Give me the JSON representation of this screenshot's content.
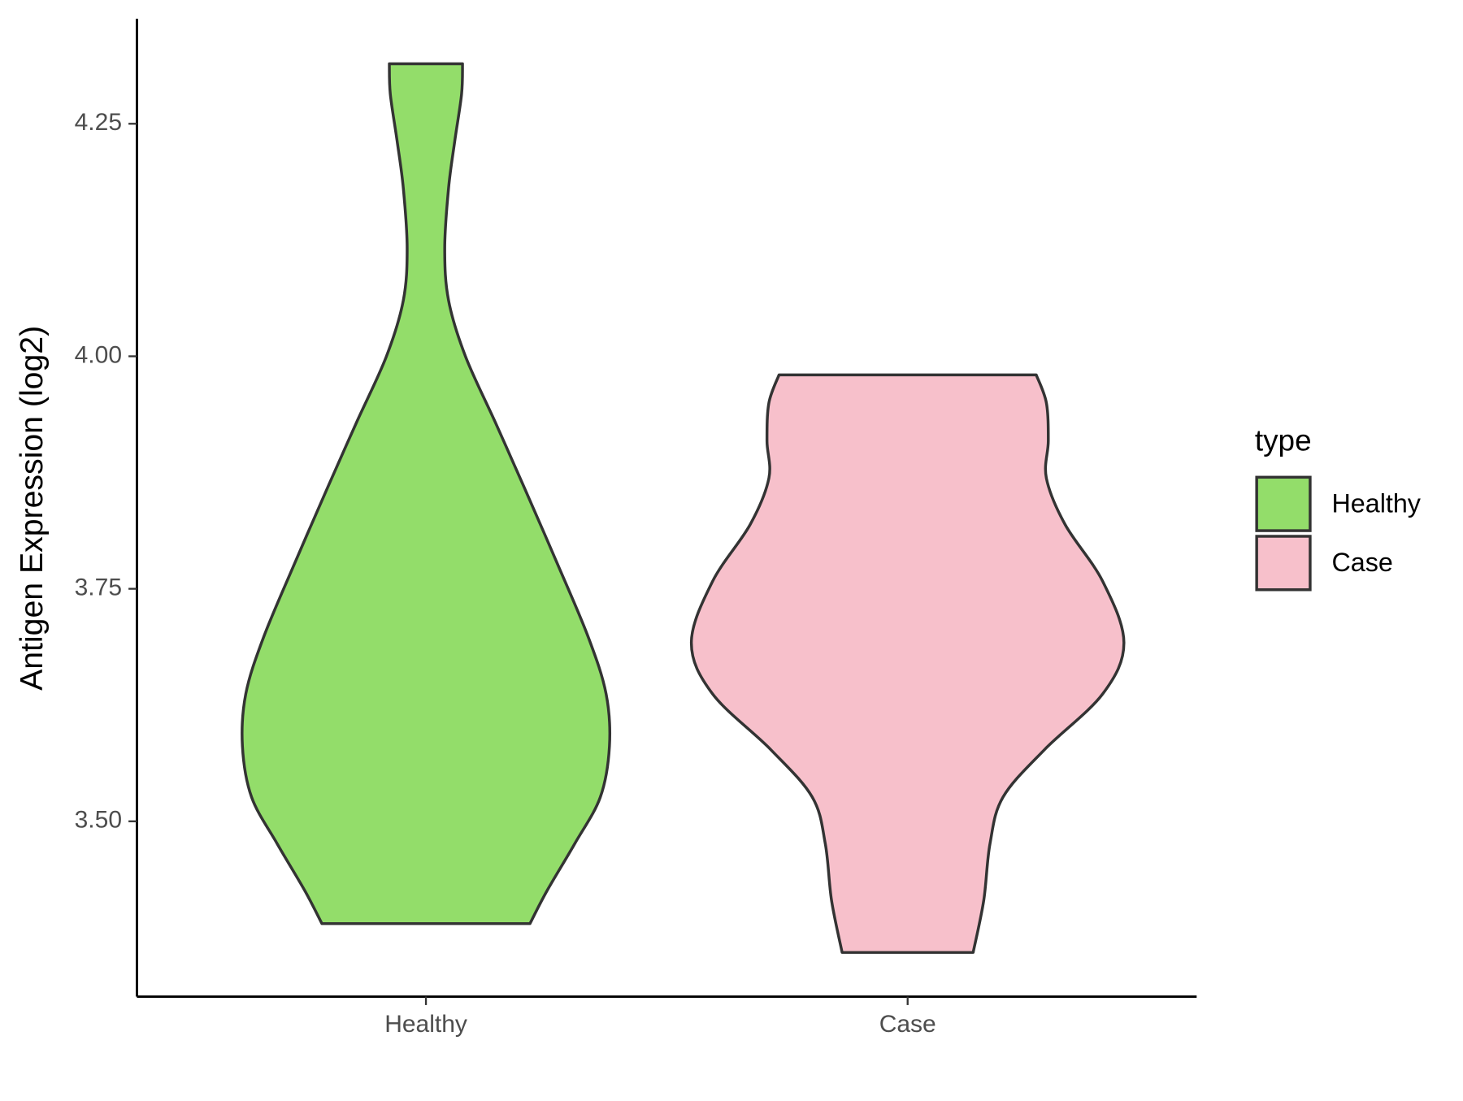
{
  "chart_data": {
    "type": "violin",
    "y_label": "Antigen Expression (log2)",
    "categories": [
      "Healthy",
      "Case"
    ],
    "xlim": [
      0.4,
      2.6
    ],
    "ylim": [
      3.3115,
      4.3629
    ],
    "yticks": [
      {
        "value": 3.5,
        "label": "3.50"
      },
      3.75,
      {
        "value": 4,
        "label": "4.00"
      },
      4.25
    ],
    "legend_title": "type",
    "legend_position": "right",
    "outline_color": "#333333",
    "series": [
      {
        "name": "Healthy",
        "color": "#93dd6a",
        "y": [
          4.3145,
          4.282,
          4.232,
          4.181,
          4.116,
          4.06,
          4.0,
          3.929,
          3.859,
          3.778,
          3.698,
          3.637,
          3.581,
          3.526,
          3.476,
          3.425,
          3.39
        ],
        "half_width": [
          0.076,
          0.074,
          0.06,
          0.047,
          0.039,
          0.047,
          0.082,
          0.144,
          0.204,
          0.272,
          0.337,
          0.374,
          0.381,
          0.362,
          0.309,
          0.251,
          0.216
        ]
      },
      {
        "name": "Case",
        "color": "#f7c0cb",
        "y": [
          3.98,
          3.95,
          3.909,
          3.869,
          3.819,
          3.758,
          3.692,
          3.637,
          3.577,
          3.526,
          3.476,
          3.415,
          3.359
        ],
        "half_width": [
          0.267,
          0.288,
          0.292,
          0.288,
          0.327,
          0.405,
          0.449,
          0.405,
          0.284,
          0.198,
          0.171,
          0.158,
          0.136
        ]
      }
    ]
  }
}
